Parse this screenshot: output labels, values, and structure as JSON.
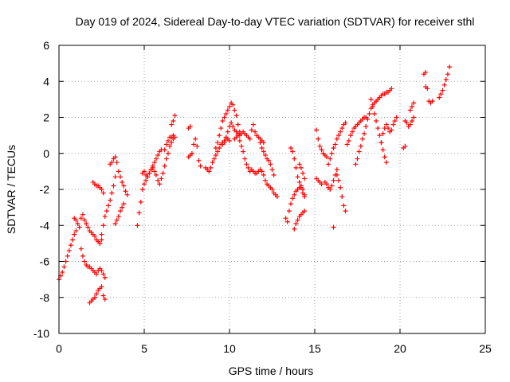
{
  "chart_data": {
    "type": "scatter",
    "title": "Day 019 of 2024, Sidereal Day-to-day VTEC variation (SDTVAR) for receiver sthl",
    "xlabel": "GPS time / hours",
    "ylabel": "SDTVAR / TECUs",
    "xlim": [
      0,
      25
    ],
    "ylim": [
      -10,
      6
    ],
    "xticks": [
      0,
      5,
      10,
      15,
      20,
      25
    ],
    "yticks": [
      -10,
      -8,
      -6,
      -4,
      -2,
      0,
      2,
      4,
      6
    ],
    "xtick_labels": [
      "0",
      "5",
      "10",
      "15",
      "20",
      "25"
    ],
    "ytick_labels": [
      "-10",
      "-8",
      "-6",
      "-4",
      "-2",
      "0",
      "2",
      "4",
      "6"
    ],
    "grid": true,
    "marker": "+",
    "color": "#ff0000",
    "series": [
      {
        "name": "a1",
        "x": [
          0.0,
          0.1,
          0.2,
          0.3,
          0.4,
          0.5,
          0.6,
          0.7,
          0.8,
          0.9,
          1.0
        ],
        "y": [
          -7.0,
          -6.8,
          -6.6,
          -6.3,
          -6.0,
          -5.7,
          -5.4,
          -5.1,
          -4.8,
          -4.5,
          -4.3
        ]
      },
      {
        "name": "a2",
        "x": [
          0.9,
          1.0,
          1.1,
          1.2,
          1.3,
          1.4,
          1.5,
          1.6,
          1.7,
          1.8,
          1.9,
          2.0,
          2.1,
          2.2,
          2.3,
          2.4,
          2.5
        ],
        "y": [
          -3.6,
          -3.7,
          -3.9,
          -4.1,
          -3.6,
          -3.4,
          -3.7,
          -3.9,
          -4.1,
          -4.3,
          -4.4,
          -4.5,
          -4.6,
          -4.8,
          -4.9,
          -5.0,
          -4.8
        ]
      },
      {
        "name": "a3",
        "x": [
          1.3,
          1.4,
          1.5,
          1.6,
          1.7,
          1.8,
          1.9,
          2.0,
          2.1,
          2.2,
          2.3,
          2.4,
          2.5,
          2.6,
          2.7
        ],
        "y": [
          -5.3,
          -5.7,
          -6.0,
          -6.2,
          -6.3,
          -6.3,
          -6.4,
          -6.5,
          -6.6,
          -6.7,
          -6.5,
          -6.4,
          -6.5,
          -6.7,
          -6.9
        ]
      },
      {
        "name": "a4",
        "x": [
          1.8,
          1.9,
          2.0,
          2.1,
          2.2,
          2.3,
          2.4,
          2.5,
          2.6,
          2.7
        ],
        "y": [
          -8.3,
          -8.2,
          -8.1,
          -8.0,
          -7.8,
          -7.6,
          -7.5,
          -7.4,
          -7.9,
          -8.1
        ]
      },
      {
        "name": "a5",
        "x": [
          2.5,
          2.6,
          2.7,
          2.8,
          2.9,
          3.0,
          3.1,
          3.2,
          3.3,
          3.4
        ],
        "y": [
          -4.5,
          -4.0,
          -3.5,
          -3.2,
          -2.9,
          -2.6,
          -2.2,
          -1.8,
          -1.3,
          -0.5
        ]
      },
      {
        "name": "a6",
        "x": [
          3.0,
          3.1,
          3.2,
          3.3
        ],
        "y": [
          -0.6,
          -0.5,
          -0.3,
          -0.2
        ]
      },
      {
        "name": "a7",
        "x": [
          2.0,
          2.1,
          2.2,
          2.3,
          2.4,
          2.5,
          2.6
        ],
        "y": [
          -1.6,
          -1.7,
          -1.8,
          -1.8,
          -1.9,
          -2.0,
          -2.2
        ]
      },
      {
        "name": "a8",
        "x": [
          3.3,
          3.4,
          3.5,
          3.6,
          3.7,
          3.8
        ],
        "y": [
          -3.9,
          -3.7,
          -3.5,
          -3.2,
          -3.0,
          -2.8
        ]
      },
      {
        "name": "a9",
        "x": [
          3.5,
          3.6,
          3.7,
          3.8,
          3.9,
          4.0
        ],
        "y": [
          -1.0,
          -1.3,
          -1.6,
          -1.8,
          -2.1,
          -2.3
        ]
      },
      {
        "name": "a10",
        "x": [
          4.6,
          4.7,
          4.8,
          4.9,
          5.0,
          5.1,
          5.2,
          5.3,
          5.4,
          5.5,
          5.6,
          5.7,
          5.8,
          5.9,
          6.0
        ],
        "y": [
          -4.0,
          -3.3,
          -2.7,
          -2.0,
          -1.7,
          -1.5,
          -1.3,
          -1.1,
          -0.9,
          -0.7,
          -0.5,
          -0.3,
          -0.1,
          0.1,
          0.2
        ]
      },
      {
        "name": "a11",
        "x": [
          4.9,
          5.0,
          5.1,
          5.2,
          5.3,
          5.4,
          5.5,
          5.6,
          5.7,
          5.8,
          5.9,
          6.0,
          6.1,
          6.2,
          6.3,
          6.4,
          6.5,
          6.6,
          6.7
        ],
        "y": [
          -1.1,
          -1.0,
          -1.2,
          -1.3,
          -1.1,
          -0.9,
          -0.8,
          -1.0,
          -1.2,
          -1.5,
          -1.7,
          -1.4,
          -1.1,
          -0.7,
          -0.3,
          0.0,
          0.4,
          0.6,
          0.8
        ]
      },
      {
        "name": "a12",
        "x": [
          6.2,
          6.3,
          6.4,
          6.5,
          6.6,
          6.7,
          6.8
        ],
        "y": [
          0.2,
          0.5,
          0.7,
          0.9,
          0.9,
          1.0,
          0.9
        ]
      },
      {
        "name": "a13",
        "x": [
          6.6,
          6.7,
          6.8
        ],
        "y": [
          1.6,
          1.8,
          2.1
        ]
      },
      {
        "name": "a14",
        "x": [
          7.6,
          7.7
        ],
        "y": [
          1.4,
          1.5
        ]
      },
      {
        "name": "a15",
        "x": [
          7.6,
          7.7,
          7.8,
          7.9,
          8.0,
          8.1,
          8.2,
          8.3
        ],
        "y": [
          -0.2,
          -0.1,
          0.0,
          0.5,
          0.8,
          0.4,
          -0.4,
          -0.7
        ]
      },
      {
        "name": "a16",
        "x": [
          8.6,
          8.7,
          8.8,
          8.9,
          9.0,
          9.1,
          9.2,
          9.3,
          9.4,
          9.5,
          9.6,
          9.7,
          9.8,
          9.9,
          10.0
        ],
        "y": [
          -0.8,
          -0.9,
          -1.0,
          -0.8,
          -0.5,
          -0.3,
          -0.1,
          0.1,
          0.3,
          0.5,
          0.6,
          0.7,
          0.8,
          0.8,
          0.7
        ]
      },
      {
        "name": "a17",
        "x": [
          9.2,
          9.3,
          9.4,
          9.5,
          9.6,
          9.7,
          9.8,
          9.9,
          10.0,
          10.1,
          10.2,
          10.3,
          10.4,
          10.5,
          10.6
        ],
        "y": [
          0.3,
          0.6,
          1.0,
          1.4,
          1.8,
          2.0,
          2.2,
          2.4,
          2.6,
          2.8,
          2.7,
          2.4,
          2.1,
          1.6,
          1.2
        ]
      },
      {
        "name": "a18",
        "x": [
          9.6,
          9.7,
          9.8,
          9.9,
          10.0,
          10.1,
          10.2,
          10.3,
          10.4,
          10.5
        ],
        "y": [
          0.5,
          0.6,
          0.9,
          1.2,
          1.5,
          1.7,
          1.5,
          1.3,
          1.2,
          1.1
        ]
      },
      {
        "name": "a19",
        "x": [
          10.5,
          10.6,
          10.7,
          10.8,
          10.9,
          11.0,
          11.1,
          11.2
        ],
        "y": [
          1.0,
          0.7,
          0.4,
          0.1,
          -0.3,
          -0.6,
          -0.8,
          -1.0
        ]
      },
      {
        "name": "a20",
        "x": [
          10.3,
          10.4,
          10.5,
          10.6,
          10.7,
          10.8,
          10.9,
          11.0,
          11.1,
          11.2,
          11.3,
          11.4,
          11.5,
          11.6,
          11.7,
          11.8,
          11.9,
          12.0
        ],
        "y": [
          0.8,
          0.9,
          1.0,
          1.0,
          1.1,
          1.2,
          1.1,
          1.0,
          0.9,
          0.8,
          1.3,
          1.6,
          1.2,
          1.0,
          0.9,
          0.8,
          0.7,
          0.6
        ]
      },
      {
        "name": "a21",
        "x": [
          11.8,
          11.9,
          12.0,
          12.1,
          12.2,
          12.3,
          12.4,
          12.5,
          12.6
        ],
        "y": [
          0.6,
          0.3,
          0.1,
          -0.1,
          -0.3,
          -0.4,
          -0.6,
          -0.9,
          -1.2
        ]
      },
      {
        "name": "a22",
        "x": [
          11.3,
          11.4,
          11.5,
          11.6,
          11.7,
          11.8,
          11.9,
          12.0,
          12.1,
          12.2,
          12.3,
          12.4
        ],
        "y": [
          -0.9,
          -1.0,
          -1.1,
          -1.1,
          -1.0,
          -0.9,
          -1.0,
          -1.2,
          -1.5,
          -1.7,
          -1.8,
          -1.9
        ]
      },
      {
        "name": "a23",
        "x": [
          12.5,
          12.6,
          12.7,
          12.8
        ],
        "y": [
          -2.0,
          -2.2,
          -2.3,
          -2.4
        ]
      },
      {
        "name": "a24",
        "x": [
          13.3,
          13.4
        ],
        "y": [
          -3.6,
          -3.8
        ]
      },
      {
        "name": "a25",
        "x": [
          13.5,
          13.6,
          13.7,
          13.8,
          13.9,
          14.0,
          14.1,
          14.2,
          14.3,
          14.4
        ],
        "y": [
          -3.2,
          -2.8,
          -2.5,
          -2.3,
          -2.1,
          -2.0,
          -1.9,
          -1.8,
          -2.0,
          -2.3
        ]
      },
      {
        "name": "a26",
        "x": [
          13.6,
          13.7,
          13.8,
          13.9,
          14.0,
          14.1,
          14.2,
          14.3,
          14.4
        ],
        "y": [
          0.3,
          0.1,
          -0.3,
          -0.8,
          -1.3,
          -1.6,
          -1.9,
          -2.2,
          -2.4
        ]
      },
      {
        "name": "a27",
        "x": [
          13.8,
          13.9,
          14.0,
          14.1,
          14.2,
          14.3,
          14.4
        ],
        "y": [
          -4.2,
          -3.9,
          -3.7,
          -3.5,
          -3.4,
          -3.3,
          -3.2
        ]
      },
      {
        "name": "a28",
        "x": [
          14.1,
          14.2,
          14.3,
          14.4
        ],
        "y": [
          -0.6,
          -0.8,
          -1.1,
          -1.4
        ]
      },
      {
        "name": "a29",
        "x": [
          15.1,
          15.2,
          15.3,
          15.4,
          15.5,
          15.6,
          15.7
        ],
        "y": [
          1.3,
          0.8,
          0.4,
          0.2,
          0.0,
          -0.1,
          -0.2
        ]
      },
      {
        "name": "a30",
        "x": [
          15.1,
          15.2,
          15.3,
          15.4
        ],
        "y": [
          -1.4,
          -1.5,
          -1.6,
          -1.7
        ]
      },
      {
        "name": "a31",
        "x": [
          15.6,
          15.7,
          15.8,
          15.9,
          16.0,
          16.1,
          16.2,
          16.3
        ],
        "y": [
          -1.6,
          -1.7,
          -1.9,
          -2.0,
          -1.8,
          -1.5,
          -1.2,
          -0.9
        ]
      },
      {
        "name": "a32",
        "x": [
          16.1
        ],
        "y": [
          -4.1
        ]
      },
      {
        "name": "a33",
        "x": [
          15.8,
          15.9,
          16.0,
          16.1,
          16.2,
          16.3,
          16.4,
          16.5,
          16.6,
          16.7,
          16.8
        ],
        "y": [
          -0.6,
          -0.3,
          0.0,
          0.3,
          0.5,
          0.8,
          1.0,
          1.2,
          1.4,
          1.6,
          1.7
        ]
      },
      {
        "name": "a34",
        "x": [
          16.3,
          16.4,
          16.5,
          16.6,
          16.7,
          16.8
        ],
        "y": [
          -1.2,
          -1.5,
          -1.9,
          -2.4,
          -2.9,
          -3.2
        ]
      },
      {
        "name": "a35",
        "x": [
          16.9,
          17.0,
          17.1,
          17.2,
          17.3,
          17.4,
          17.5,
          17.6,
          17.7,
          17.8,
          17.9,
          18.0
        ],
        "y": [
          0.5,
          0.7,
          1.0,
          1.2,
          1.4,
          1.5,
          1.6,
          1.7,
          1.8,
          1.9,
          2.0,
          2.0
        ]
      },
      {
        "name": "a36",
        "x": [
          17.4,
          17.5,
          17.6,
          17.7,
          17.8,
          17.9,
          18.0,
          18.1,
          18.2,
          18.3,
          18.4,
          18.5,
          18.6,
          18.7,
          18.8,
          18.9,
          19.0,
          19.1,
          19.2,
          19.3,
          19.4,
          19.5
        ],
        "y": [
          -0.6,
          -0.3,
          0.1,
          0.4,
          0.8,
          1.1,
          1.5,
          1.9,
          2.2,
          2.5,
          2.7,
          2.8,
          2.9,
          3.0,
          3.1,
          3.2,
          3.3,
          3.3,
          3.4,
          3.4,
          3.5,
          3.6
        ]
      },
      {
        "name": "a37",
        "x": [
          18.3,
          18.4,
          18.5,
          18.6,
          18.7,
          18.8,
          18.9,
          19.0,
          19.1,
          19.2
        ],
        "y": [
          3.0,
          2.6,
          2.2,
          1.8,
          1.4,
          1.0,
          0.6,
          0.2,
          -0.2,
          -0.5
        ]
      },
      {
        "name": "a38",
        "x": [
          18.9,
          19.0,
          19.1,
          19.2,
          19.3,
          19.4,
          19.5,
          19.6,
          19.7,
          19.8
        ],
        "y": [
          0.6,
          1.1,
          1.4,
          1.6,
          1.4,
          1.2,
          1.3,
          1.6,
          1.8,
          2.0
        ]
      },
      {
        "name": "a39",
        "x": [
          20.2,
          20.3
        ],
        "y": [
          0.3,
          0.4
        ]
      },
      {
        "name": "a40",
        "x": [
          20.3,
          20.4,
          20.5,
          20.6,
          20.7,
          20.8
        ],
        "y": [
          1.8,
          1.7,
          1.5,
          1.6,
          1.8,
          2.0
        ]
      },
      {
        "name": "a41",
        "x": [
          20.6,
          20.7,
          20.8
        ],
        "y": [
          2.4,
          2.6,
          2.8
        ]
      },
      {
        "name": "a42",
        "x": [
          21.4,
          21.5
        ],
        "y": [
          4.4,
          4.5
        ]
      },
      {
        "name": "a43",
        "x": [
          21.5,
          21.6
        ],
        "y": [
          3.7,
          3.6
        ]
      },
      {
        "name": "a44",
        "x": [
          21.7,
          21.8,
          21.9
        ],
        "y": [
          2.9,
          2.8,
          2.9
        ]
      },
      {
        "name": "a45",
        "x": [
          22.3,
          22.4,
          22.5,
          22.6,
          22.7,
          22.8,
          22.9
        ],
        "y": [
          3.1,
          3.3,
          3.5,
          3.8,
          4.1,
          4.4,
          4.8
        ]
      }
    ]
  }
}
